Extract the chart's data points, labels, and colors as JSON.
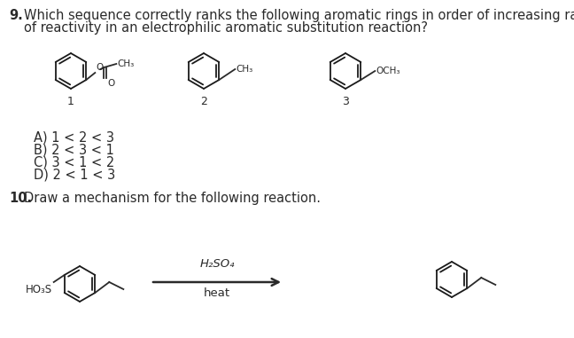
{
  "background_color": "#ffffff",
  "q9_number": "9.",
  "q9_text_line1": "Which sequence correctly ranks the following aromatic rings in order of increasing rate",
  "q9_text_line2": "of reactivity in an electrophilic aromatic substitution reaction?",
  "label1": "1",
  "label2": "2",
  "label3": "3",
  "answers": [
    "A) 1 < 2 < 3",
    "B) 2 < 3 < 1",
    "C) 3 < 1 < 2",
    "D) 2 < 1 < 3"
  ],
  "q10_number": "10.",
  "q10_text": "Draw a mechanism for the following reaction.",
  "reagent_line1": "H₂SO₄",
  "reagent_line2": "heat",
  "ho3s_label": "HO₃S",
  "font_size_main": 10.5,
  "text_color": "#2a2a2a"
}
